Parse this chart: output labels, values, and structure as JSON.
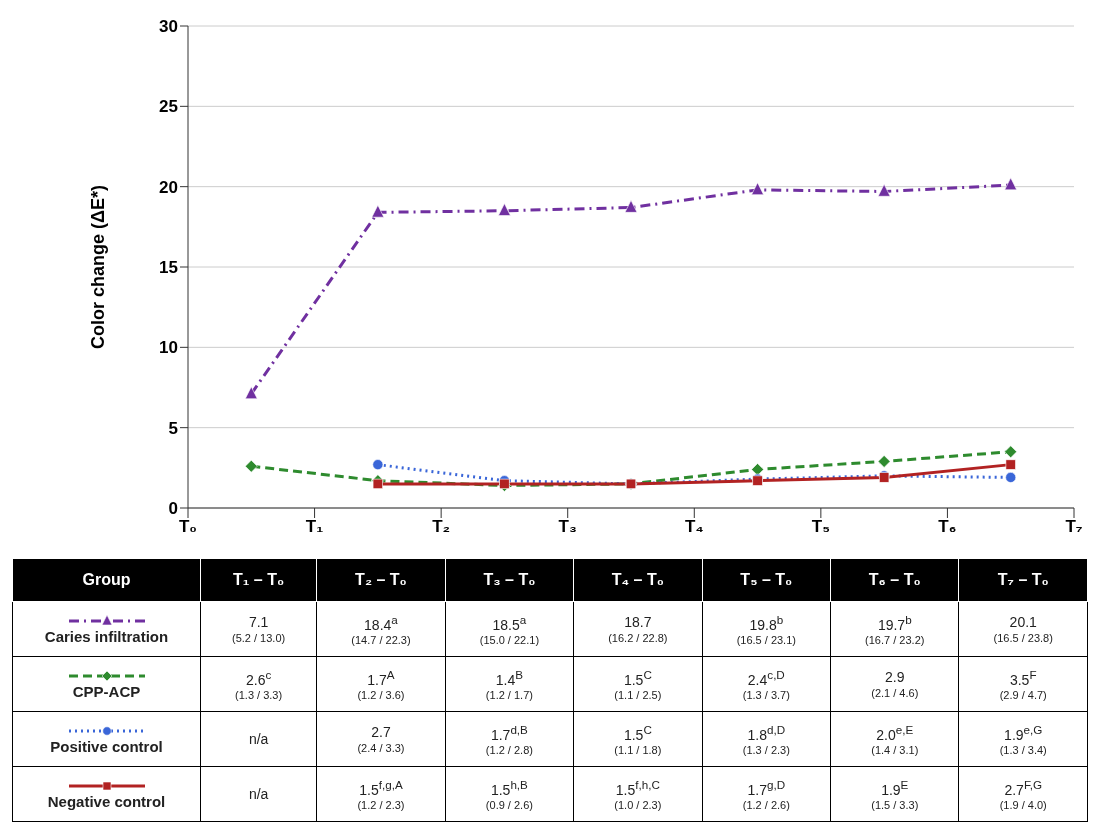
{
  "chart_data": {
    "type": "line",
    "ylabel": "Color change (ΔE*)",
    "categories": [
      "T₀",
      null,
      "T₁",
      null,
      "T₂",
      null,
      "T₃",
      null,
      "T₄",
      null,
      "T₅",
      null,
      "T₆",
      null,
      "T₇"
    ],
    "ylim": [
      0,
      30
    ],
    "yticks": [
      0,
      5,
      10,
      15,
      20,
      25,
      30
    ],
    "grid": "y",
    "legend": "bottom",
    "annotations": [
      "Group",
      "T₁ – T₀",
      "T₂ – T₀",
      "T₃ – T₀",
      "T₄ – T₀",
      "T₅ – T₀",
      "T₆ – T₀",
      "T₇ – T₀"
    ],
    "series": [
      {
        "name": "Caries infiltration",
        "color": "#7030a0",
        "marker": "triangle",
        "line_style": "dashdot",
        "values": [
          null,
          7.1,
          null,
          18.4,
          null,
          18.5,
          null,
          18.7,
          null,
          19.8,
          null,
          19.7,
          null,
          20.1,
          null
        ],
        "value_labels": [
          null,
          "7.1\n(5.2 / 13.0)",
          null,
          "18.4$^{a}$\n(14.7 / 22.3)",
          null,
          "18.5$^{a}$\n(15.0 / 22.1)",
          null,
          "18.7\n(16.2 / 22.8)",
          null,
          "19.8$^{b}$\n(16.5 / 23.1)",
          null,
          "19.7$^{b}$\n(16.7 / 23.2)",
          null,
          "20.1\n(16.5 / 23.8)",
          null
        ]
      },
      {
        "name": "CPP-ACP",
        "color": "#2e8b2e",
        "marker": "diamond",
        "line_style": "dashed",
        "values": [
          null,
          2.6,
          null,
          1.7,
          null,
          1.4,
          null,
          1.5,
          null,
          2.4,
          null,
          2.9,
          null,
          3.5,
          null
        ],
        "value_labels": [
          null,
          "2.6$^{c}$\n(1.3 / 3.3)",
          null,
          "1.7$^{A}$\n(1.2 / 3.6)",
          null,
          "1.4$^{B}$\n(1.2 / 1.7)",
          null,
          "1.5$^{C}$\n(1.1 / 2.5)",
          null,
          "2.4$^{c,D}$\n(1.3 / 3.7)",
          null,
          "2.9\n(2.1 / 4.6)",
          null,
          "3.5$^{F}$\n(2.9 / 4.7)",
          null
        ]
      },
      {
        "name": "Positive control",
        "color": "#3a66d8",
        "marker": "circle",
        "line_style": "dotted",
        "values": [
          null,
          null,
          null,
          2.7,
          null,
          1.7,
          null,
          1.5,
          null,
          1.8,
          null,
          2.0,
          null,
          1.9,
          null
        ],
        "value_labels": [
          null,
          "n/a",
          null,
          "2.7\n(2.4 / 3.3)",
          null,
          "1.7$^{d,B}$\n(1.2 / 2.8)",
          null,
          "1.5$^{C}$\n(1.1 / 1.8)",
          null,
          "1.8$^{d,D}$\n(1.3 / 2.3)",
          null,
          "2.0$^{e,E}$\n(1.4 / 3.1)",
          null,
          "1.9$^{e,G}$\n(1.3 / 3.4)",
          null
        ]
      },
      {
        "name": "Negative control",
        "color": "#b22222",
        "marker": "square",
        "line_style": "solid",
        "values": [
          null,
          null,
          null,
          1.5,
          null,
          1.5,
          null,
          1.5,
          null,
          1.7,
          null,
          1.9,
          null,
          2.7,
          null
        ],
        "value_labels": [
          null,
          "n/a",
          null,
          "1.5$^{f,g,A}$\n(1.2 / 2.3)",
          null,
          "1.5$^{h,B}$\n(0.9 / 2.6)",
          null,
          "1.5$^{f,h,C}$\n(1.0 / 2.3)",
          null,
          "1.7$^{g,D}$\n(1.2 / 2.6)",
          null,
          "1.9$^{E}$\n(1.5 / 3.3)",
          null,
          "2.7$^{F,G}$\n(1.9 / 4.0)",
          null
        ]
      }
    ]
  }
}
